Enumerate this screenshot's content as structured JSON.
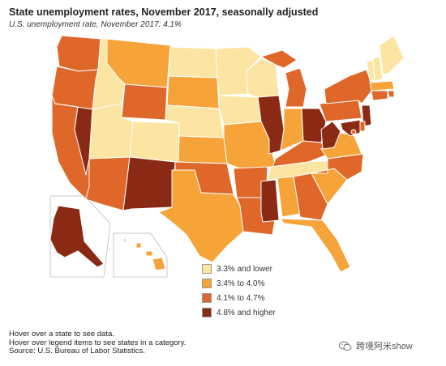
{
  "header": {
    "title": "State unemployment rates, November 2017, seasonally adjusted",
    "subtitle": "U.S. unemployment rate, November 2017: 4.1%"
  },
  "colors": {
    "cat1": "#fce5a3",
    "cat2": "#f6a43a",
    "cat3": "#e0672a",
    "cat4": "#8b2a14"
  },
  "legend": {
    "items": [
      {
        "label": "3.3% and lower",
        "color": "#fce5a3"
      },
      {
        "label": "3.4% to 4.0%",
        "color": "#f6a43a"
      },
      {
        "label": "4.1% to 4.7%",
        "color": "#e0672a"
      },
      {
        "label": "4.8% and higher",
        "color": "#8b2a14"
      }
    ]
  },
  "notes": {
    "line1": "Hover over a state to see data.",
    "line2": "Hover over legend items to see states in a category.",
    "line3": "Source: U.S. Bureau of Labor Statistics."
  },
  "watermark": {
    "text": "跨境阿米show"
  }
}
